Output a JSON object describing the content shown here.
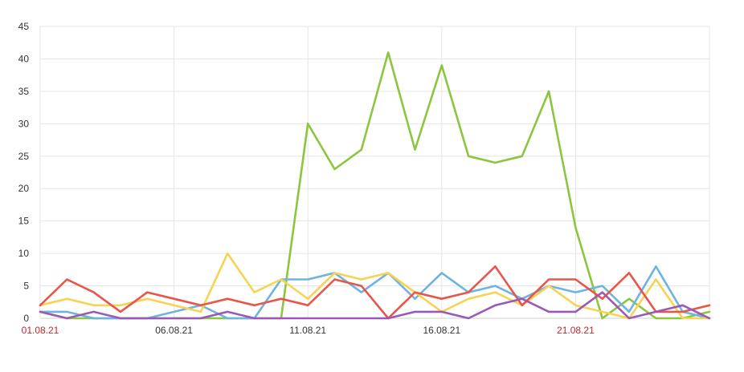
{
  "chart_data": {
    "type": "line",
    "title": "",
    "xlabel": "",
    "ylabel": "",
    "ylim": [
      0,
      45
    ],
    "y_ticks": [
      "0",
      "5",
      "10",
      "15",
      "20",
      "25",
      "30",
      "35",
      "40",
      "45"
    ],
    "x_tick_labels": [
      {
        "label": "01.08.21",
        "index": 0,
        "color": "#c0282d"
      },
      {
        "label": "06.08.21",
        "index": 5,
        "color": "#333333"
      },
      {
        "label": "11.08.21",
        "index": 10,
        "color": "#333333"
      },
      {
        "label": "16.08.21",
        "index": 15,
        "color": "#333333"
      },
      {
        "label": "21.08.21",
        "index": 20,
        "color": "#c0282d"
      }
    ],
    "grid": true,
    "legend": "none",
    "categories": [
      "01.08.21",
      "02.08.21",
      "03.08.21",
      "04.08.21",
      "05.08.21",
      "06.08.21",
      "07.08.21",
      "08.08.21",
      "09.08.21",
      "10.08.21",
      "11.08.21",
      "12.08.21",
      "13.08.21",
      "14.08.21",
      "15.08.21",
      "16.08.21",
      "17.08.21",
      "18.08.21",
      "19.08.21",
      "20.08.21",
      "21.08.21",
      "22.08.21",
      "23.08.21",
      "24.08.21",
      "25.08.21",
      "26.08.21"
    ],
    "series": [
      {
        "color": "#8cc63f",
        "values": [
          1,
          0,
          0,
          0,
          0,
          0,
          0,
          0,
          0,
          0,
          30,
          23,
          26,
          41,
          26,
          39,
          25,
          24,
          25,
          35,
          14,
          0,
          3,
          0,
          0,
          1
        ]
      },
      {
        "color": "#6fb3e0",
        "values": [
          1,
          1,
          0,
          0,
          0,
          1,
          2,
          0,
          0,
          6,
          6,
          7,
          4,
          7,
          3,
          7,
          4,
          5,
          3,
          5,
          4,
          5,
          1,
          8,
          1,
          0
        ]
      },
      {
        "color": "#f7d354",
        "values": [
          2,
          3,
          2,
          2,
          3,
          2,
          1,
          10,
          4,
          6,
          3,
          7,
          6,
          7,
          4,
          1,
          3,
          4,
          2,
          5,
          2,
          1,
          0,
          6,
          0,
          0
        ]
      },
      {
        "color": "#e8564a",
        "values": [
          2,
          6,
          4,
          1,
          4,
          3,
          2,
          3,
          2,
          3,
          2,
          6,
          5,
          0,
          4,
          3,
          4,
          8,
          2,
          6,
          6,
          3,
          7,
          1,
          1,
          2
        ]
      },
      {
        "color": "#9b59b6",
        "values": [
          1,
          0,
          1,
          0,
          0,
          0,
          0,
          1,
          0,
          0,
          0,
          0,
          0,
          0,
          1,
          1,
          0,
          2,
          3,
          1,
          1,
          4,
          0,
          1,
          2,
          0
        ]
      }
    ]
  }
}
